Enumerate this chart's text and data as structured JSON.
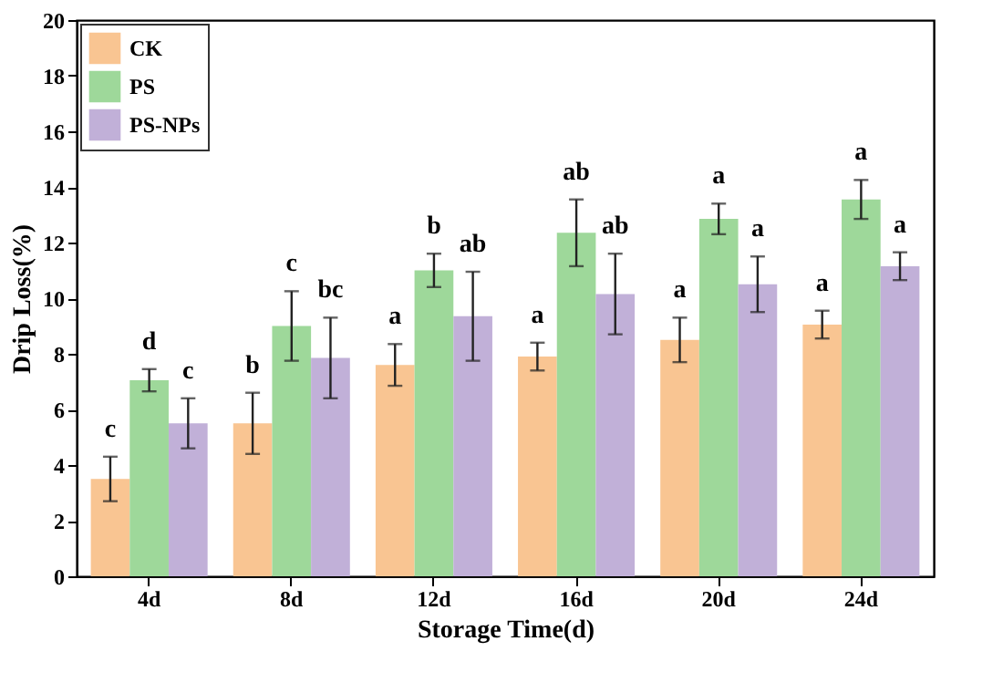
{
  "chart_data": {
    "type": "bar",
    "xlabel": "Storage Time(d)",
    "ylabel": "Drip Loss(%)",
    "categories": [
      "4d",
      "8d",
      "12d",
      "16d",
      "20d",
      "24d"
    ],
    "series": [
      {
        "name": "CK",
        "color": "#f9c592",
        "values": [
          3.5,
          5.5,
          7.6,
          7.9,
          8.5,
          9.05
        ],
        "errors": [
          0.8,
          1.1,
          0.75,
          0.5,
          0.8,
          0.5
        ],
        "value_labels": [
          "c",
          "b",
          "a",
          "a",
          "a",
          "a"
        ]
      },
      {
        "name": "PS",
        "color": "#9ed89a",
        "values": [
          7.05,
          9.0,
          11.0,
          12.35,
          12.85,
          13.55
        ],
        "errors": [
          0.4,
          1.25,
          0.6,
          1.2,
          0.55,
          0.7
        ],
        "value_labels": [
          "d",
          "c",
          "b",
          "ab",
          "a",
          "a"
        ]
      },
      {
        "name": "PS-NPs",
        "color": "#c1b0d8",
        "values": [
          5.5,
          7.85,
          9.35,
          10.15,
          10.5,
          11.15
        ],
        "errors": [
          0.9,
          1.45,
          1.6,
          1.45,
          1.0,
          0.5
        ],
        "value_labels": [
          "c",
          "bc",
          "ab",
          "ab",
          "a",
          "a"
        ]
      }
    ],
    "ylim": [
      0,
      20
    ],
    "yticks": [
      0,
      2,
      4,
      6,
      8,
      10,
      12,
      14,
      16,
      18,
      20
    ],
    "grid": false,
    "legend": "top left"
  }
}
